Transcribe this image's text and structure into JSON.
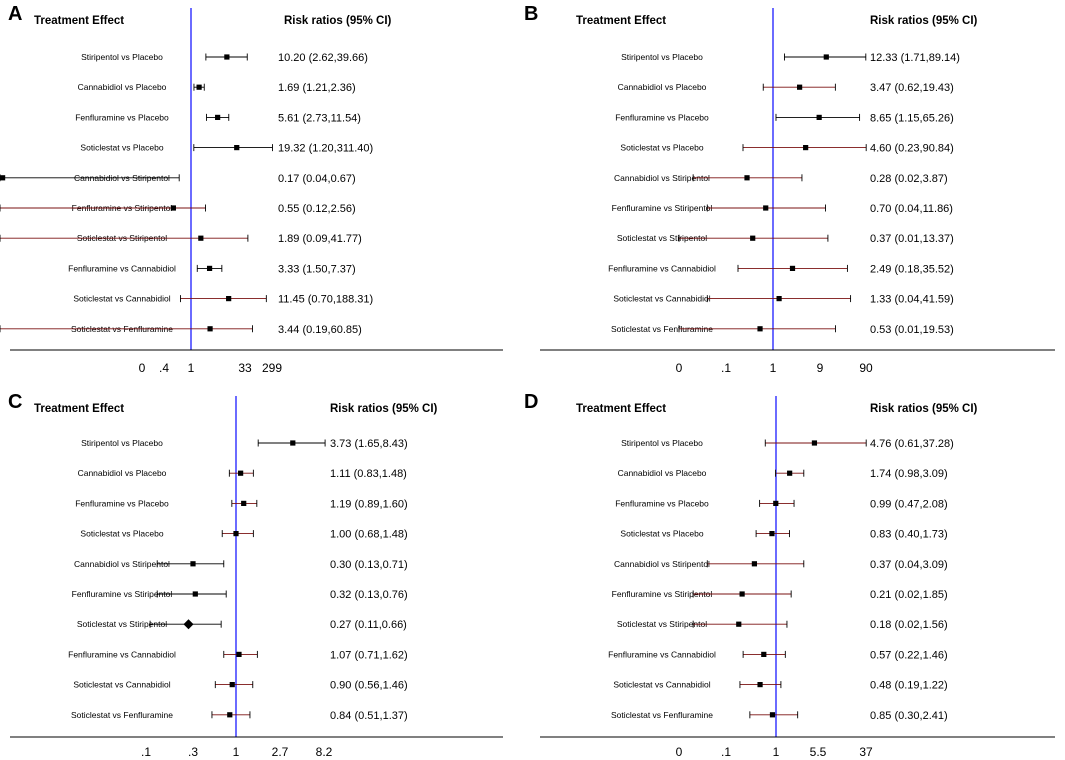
{
  "chart_data": [
    {
      "type": "forest",
      "panel_label": "A",
      "col_left": "Treatment Effect",
      "col_right": "Risk ratios (95% CI)",
      "axis_tick_labels": [
        "0",
        ".4",
        "1",
        "33",
        "299"
      ],
      "axis_tick_positions": [
        0,
        0.4,
        1,
        33,
        299
      ],
      "rows": [
        {
          "comparison": "Stiripentol vs Placebo",
          "est": 10.2,
          "lo": 2.62,
          "hi": 39.66,
          "ci_label": "10.20 (2.62,39.66)",
          "marker": "square"
        },
        {
          "comparison": "Cannabidiol vs Placebo",
          "est": 1.69,
          "lo": 1.21,
          "hi": 2.36,
          "ci_label": "1.69 (1.21,2.36)",
          "marker": "square"
        },
        {
          "comparison": "Fenfluramine vs Placebo",
          "est": 5.61,
          "lo": 2.73,
          "hi": 11.54,
          "ci_label": "5.61 (2.73,11.54)",
          "marker": "square"
        },
        {
          "comparison": "Soticlestat vs Placebo",
          "est": 19.32,
          "lo": 1.2,
          "hi": 311.4,
          "ci_label": "19.32 (1.20,311.40)",
          "marker": "square"
        },
        {
          "comparison": "Cannabidiol vs Stiripentol",
          "est": 0.17,
          "lo": 0.04,
          "hi": 0.67,
          "ci_label": "0.17 (0.04,0.67)",
          "marker": "square"
        },
        {
          "comparison": "Fenfluramine vs Stiripentol",
          "est": 0.55,
          "lo": 0.12,
          "hi": 2.56,
          "ci_label": "0.55 (0.12,2.56)",
          "marker": "square"
        },
        {
          "comparison": "Soticlestat vs Stiripentol",
          "est": 1.89,
          "lo": 0.09,
          "hi": 41.77,
          "ci_label": "1.89 (0.09,41.77)",
          "marker": "square"
        },
        {
          "comparison": "Fenfluramine vs Cannabidiol",
          "est": 3.33,
          "lo": 1.5,
          "hi": 7.37,
          "ci_label": "3.33 (1.50,7.37)",
          "marker": "square"
        },
        {
          "comparison": "Soticlestat vs Cannabidiol",
          "est": 11.45,
          "lo": 0.7,
          "hi": 188.31,
          "ci_label": "11.45 (0.70,188.31)",
          "marker": "square"
        },
        {
          "comparison": "Soticlestat vs Fenfluramine",
          "est": 3.44,
          "lo": 0.19,
          "hi": 60.85,
          "ci_label": "3.44 (0.19,60.85)",
          "marker": "square"
        }
      ]
    },
    {
      "type": "forest",
      "panel_label": "B",
      "col_left": "Treatment Effect",
      "col_right": "Risk ratios (95% CI)",
      "axis_tick_labels": [
        "0",
        ".1",
        "1",
        "9",
        "90"
      ],
      "axis_tick_positions": [
        0.01,
        0.1,
        1,
        9,
        90
      ],
      "rows": [
        {
          "comparison": "Stiripentol vs Placebo",
          "est": 12.33,
          "lo": 1.71,
          "hi": 89.14,
          "ci_label": "12.33 (1.71,89.14)",
          "marker": "square"
        },
        {
          "comparison": "Cannabidiol vs Placebo",
          "est": 3.47,
          "lo": 0.62,
          "hi": 19.43,
          "ci_label": "3.47 (0.62,19.43)",
          "marker": "square"
        },
        {
          "comparison": "Fenfluramine vs Placebo",
          "est": 8.65,
          "lo": 1.15,
          "hi": 65.26,
          "ci_label": "8.65 (1.15,65.26)",
          "marker": "square"
        },
        {
          "comparison": "Soticlestat vs Placebo",
          "est": 4.6,
          "lo": 0.23,
          "hi": 90.84,
          "ci_label": "4.60 (0.23,90.84)",
          "marker": "square"
        },
        {
          "comparison": "Cannabidiol vs Stiripentol",
          "est": 0.28,
          "lo": 0.02,
          "hi": 3.87,
          "ci_label": "0.28 (0.02,3.87)",
          "marker": "square"
        },
        {
          "comparison": "Fenfluramine vs Stiripentol",
          "est": 0.7,
          "lo": 0.04,
          "hi": 11.86,
          "ci_label": "0.70 (0.04,11.86)",
          "marker": "square"
        },
        {
          "comparison": "Soticlestat vs Stiripentol",
          "est": 0.37,
          "lo": 0.01,
          "hi": 13.37,
          "ci_label": "0.37 (0.01,13.37)",
          "marker": "square"
        },
        {
          "comparison": "Fenfluramine vs Cannabidiol",
          "est": 2.49,
          "lo": 0.18,
          "hi": 35.52,
          "ci_label": "2.49 (0.18,35.52)",
          "marker": "square"
        },
        {
          "comparison": "Soticlestat vs Cannabidiol",
          "est": 1.33,
          "lo": 0.04,
          "hi": 41.59,
          "ci_label": "1.33 (0.04,41.59)",
          "marker": "square"
        },
        {
          "comparison": "Soticlestat vs Fenfluramine",
          "est": 0.53,
          "lo": 0.01,
          "hi": 19.53,
          "ci_label": "0.53 (0.01,19.53)",
          "marker": "square"
        }
      ]
    },
    {
      "type": "forest",
      "panel_label": "C",
      "col_left": "Treatment Effect",
      "col_right": "Risk ratios (95% CI)",
      "axis_tick_labels": [
        ".1",
        ".3",
        "1",
        "2.7",
        "8.2"
      ],
      "axis_tick_positions": [
        0.1,
        0.3,
        1,
        2.7,
        8.2
      ],
      "rows": [
        {
          "comparison": "Stiripentol vs Placebo",
          "est": 3.73,
          "lo": 1.65,
          "hi": 8.43,
          "ci_label": "3.73 (1.65,8.43)",
          "marker": "square"
        },
        {
          "comparison": "Cannabidiol vs Placebo",
          "est": 1.11,
          "lo": 0.83,
          "hi": 1.48,
          "ci_label": "1.11 (0.83,1.48)",
          "marker": "square"
        },
        {
          "comparison": "Fenfluramine vs Placebo",
          "est": 1.19,
          "lo": 0.89,
          "hi": 1.6,
          "ci_label": "1.19 (0.89,1.60)",
          "marker": "square"
        },
        {
          "comparison": "Soticlestat vs Placebo",
          "est": 1.0,
          "lo": 0.68,
          "hi": 1.48,
          "ci_label": "1.00 (0.68,1.48)",
          "marker": "square"
        },
        {
          "comparison": "Cannabidiol vs Stiripentol",
          "est": 0.3,
          "lo": 0.13,
          "hi": 0.71,
          "ci_label": "0.30 (0.13,0.71)",
          "marker": "square"
        },
        {
          "comparison": "Fenfluramine vs Stiripentol",
          "est": 0.32,
          "lo": 0.13,
          "hi": 0.76,
          "ci_label": "0.32 (0.13,0.76)",
          "marker": "square"
        },
        {
          "comparison": "Soticlestat vs Stiripentol",
          "est": 0.27,
          "lo": 0.11,
          "hi": 0.66,
          "ci_label": "0.27 (0.11,0.66)",
          "marker": "diamond"
        },
        {
          "comparison": "Fenfluramine vs Cannabidiol",
          "est": 1.07,
          "lo": 0.71,
          "hi": 1.62,
          "ci_label": "1.07 (0.71,1.62)",
          "marker": "square"
        },
        {
          "comparison": "Soticlestat vs Cannabidiol",
          "est": 0.9,
          "lo": 0.56,
          "hi": 1.46,
          "ci_label": "0.90 (0.56,1.46)",
          "marker": "square"
        },
        {
          "comparison": "Soticlestat vs Fenfluramine",
          "est": 0.84,
          "lo": 0.51,
          "hi": 1.37,
          "ci_label": "0.84 (0.51,1.37)",
          "marker": "square"
        }
      ]
    },
    {
      "type": "forest",
      "panel_label": "D",
      "col_left": "Treatment Effect",
      "col_right": "Risk ratios (95% CI)",
      "axis_tick_labels": [
        "0",
        ".1",
        "1",
        "5.5",
        "37"
      ],
      "axis_tick_positions": [
        0.01,
        0.1,
        1,
        5.5,
        37
      ],
      "rows": [
        {
          "comparison": "Stiripentol vs Placebo",
          "est": 4.76,
          "lo": 0.61,
          "hi": 37.28,
          "ci_label": "4.76 (0.61,37.28)",
          "marker": "square"
        },
        {
          "comparison": "Cannabidiol vs Placebo",
          "est": 1.74,
          "lo": 0.98,
          "hi": 3.09,
          "ci_label": "1.74 (0.98,3.09)",
          "marker": "square"
        },
        {
          "comparison": "Fenfluramine vs Placebo",
          "est": 0.99,
          "lo": 0.47,
          "hi": 2.08,
          "ci_label": "0.99 (0.47,2.08)",
          "marker": "square"
        },
        {
          "comparison": "Soticlestat vs Placebo",
          "est": 0.83,
          "lo": 0.4,
          "hi": 1.73,
          "ci_label": "0.83 (0.40,1.73)",
          "marker": "square"
        },
        {
          "comparison": "Cannabidiol vs Stiripentol",
          "est": 0.37,
          "lo": 0.04,
          "hi": 3.09,
          "ci_label": "0.37 (0.04,3.09)",
          "marker": "square"
        },
        {
          "comparison": "Fenfluramine vs Stiripentol",
          "est": 0.21,
          "lo": 0.02,
          "hi": 1.85,
          "ci_label": "0.21 (0.02,1.85)",
          "marker": "square"
        },
        {
          "comparison": "Soticlestat vs Stiripentol",
          "est": 0.18,
          "lo": 0.02,
          "hi": 1.56,
          "ci_label": "0.18 (0.02,1.56)",
          "marker": "square"
        },
        {
          "comparison": "Fenfluramine vs Cannabidiol",
          "est": 0.57,
          "lo": 0.22,
          "hi": 1.46,
          "ci_label": "0.57 (0.22,1.46)",
          "marker": "square"
        },
        {
          "comparison": "Soticlestat vs Cannabidiol",
          "est": 0.48,
          "lo": 0.19,
          "hi": 1.22,
          "ci_label": "0.48 (0.19,1.22)",
          "marker": "square"
        },
        {
          "comparison": "Soticlestat vs Fenfluramine",
          "est": 0.85,
          "lo": 0.3,
          "hi": 2.41,
          "ci_label": "0.85 (0.30,2.41)",
          "marker": "square"
        }
      ]
    }
  ],
  "colors": {
    "reference_line": "#1c1cff",
    "ci_line": "#000000",
    "ci_line_crossing": "#7a1010",
    "marker": "#000000"
  }
}
